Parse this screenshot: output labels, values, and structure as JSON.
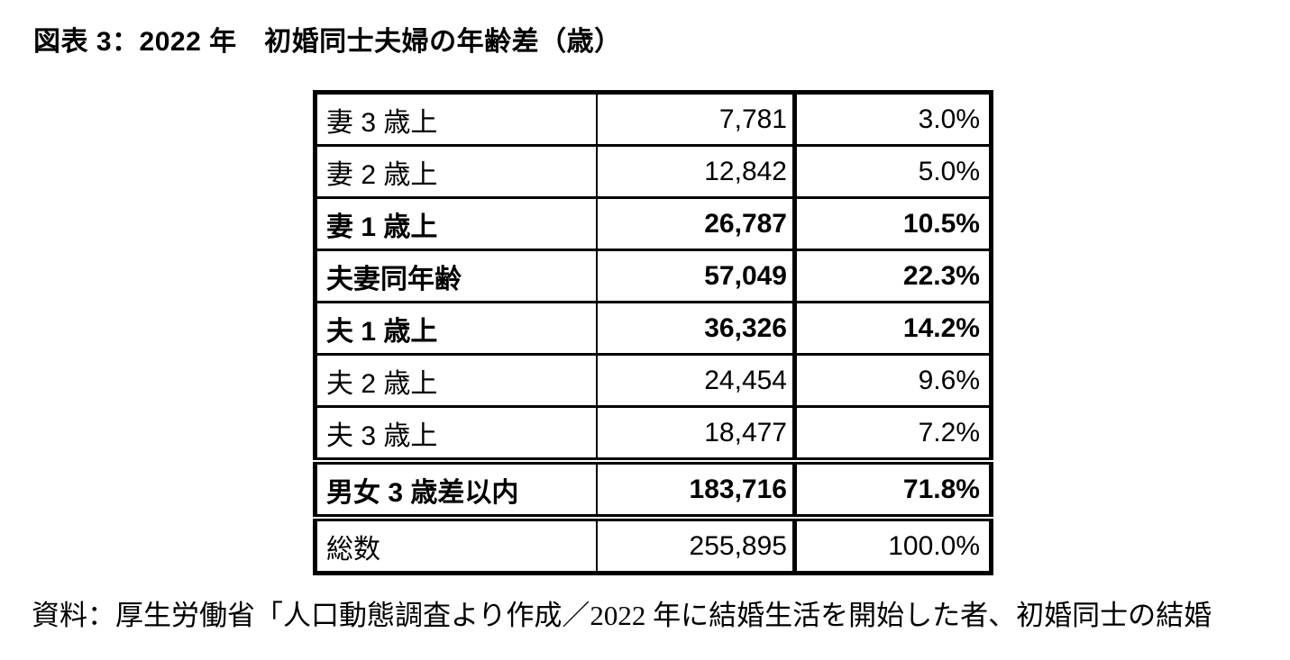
{
  "title": "図表 3：2022 年　初婚同士夫婦の年齢差（歳）",
  "source_note": "資料：厚生労働省「人口動態調査より作成／2022 年に結婚生活を開始した者、初婚同士の結婚",
  "table": {
    "rows": [
      {
        "label": "妻 3 歳上",
        "count": "7,781",
        "percent": "3.0%",
        "bold": false
      },
      {
        "label": "妻 2 歳上",
        "count": "12,842",
        "percent": "5.0%",
        "bold": false
      },
      {
        "label": "妻 1 歳上",
        "count": "26,787",
        "percent": "10.5%",
        "bold": true
      },
      {
        "label": "夫妻同年齢",
        "count": "57,049",
        "percent": "22.3%",
        "bold": true
      },
      {
        "label": "夫 1 歳上",
        "count": "36,326",
        "percent": "14.2%",
        "bold": true
      },
      {
        "label": "夫 2 歳上",
        "count": "24,454",
        "percent": "9.6%",
        "bold": false
      },
      {
        "label": "夫 3 歳上",
        "count": "18,477",
        "percent": "7.2%",
        "bold": false
      },
      {
        "label": "男女 3 歳差以内",
        "count": "183,716",
        "percent": "71.8%",
        "bold": true,
        "separator_above": "double"
      },
      {
        "label": "総数",
        "count": "255,895",
        "percent": "100.0%",
        "bold": false,
        "separator_above": "double"
      }
    ]
  },
  "colors": {
    "text": "#000000",
    "border": "#000000",
    "background": "#ffffff"
  }
}
